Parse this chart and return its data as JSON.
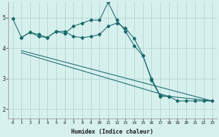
{
  "xlabel": "Humidex (Indice chaleur)",
  "background_color": "#d6f0ee",
  "grid_color": "#b8d8d4",
  "line_color": "#1a6b6b",
  "xlim": [
    -0.5,
    23.5
  ],
  "ylim": [
    1.7,
    5.5
  ],
  "yticks": [
    2,
    3,
    4,
    5
  ],
  "xticks": [
    0,
    1,
    2,
    3,
    4,
    5,
    6,
    7,
    8,
    9,
    10,
    11,
    12,
    13,
    14,
    15,
    16,
    17,
    18,
    19,
    20,
    21,
    22,
    23
  ],
  "line1_x": [
    0,
    1,
    2,
    3,
    4,
    5,
    6,
    7,
    8,
    9,
    10,
    11,
    12,
    13,
    14,
    15,
    16,
    17,
    18,
    19,
    20,
    21,
    22,
    23
  ],
  "line1_y": [
    4.97,
    4.35,
    4.52,
    4.38,
    4.35,
    4.55,
    4.48,
    4.72,
    4.82,
    4.92,
    4.92,
    5.5,
    4.92,
    4.55,
    4.08,
    3.75,
    3.0,
    2.45,
    2.42,
    2.27,
    2.27,
    2.27,
    2.27,
    2.27
  ],
  "line2_x": [
    1,
    2,
    3,
    4,
    5,
    6,
    7,
    8,
    9,
    10,
    11,
    12,
    13,
    14,
    15,
    16,
    17,
    18
  ],
  "line2_y": [
    4.35,
    4.52,
    4.45,
    4.35,
    4.55,
    4.55,
    4.38,
    4.35,
    4.38,
    4.45,
    4.72,
    4.82,
    4.65,
    4.32,
    3.77,
    2.95,
    2.42,
    2.42
  ],
  "line3_x": [
    1,
    23
  ],
  "line3_y": [
    3.92,
    2.27
  ],
  "line4_x": [
    1,
    18,
    23
  ],
  "line4_y": [
    3.85,
    2.42,
    2.27
  ],
  "marker_size": 2.2
}
